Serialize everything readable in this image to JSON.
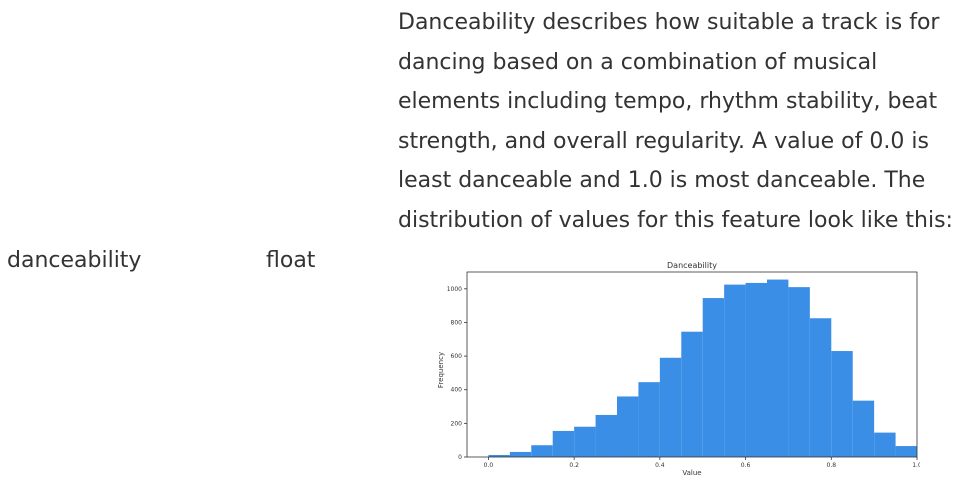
{
  "field": {
    "name": "danceability",
    "type": "float"
  },
  "description": "Danceability describes how suitable a track is for dancing based on a combination of musical elements including tempo, rhythm stability, beat strength, and overall regularity. A value of 0.0 is least danceable and 1.0 is most danceable. The distribution of values for this feature look like this:",
  "chart_data": {
    "type": "bar",
    "title": "Danceability",
    "xlabel": "Value",
    "ylabel": "Frequency",
    "xlim": [
      -0.05,
      1.0
    ],
    "ylim": [
      0,
      1100
    ],
    "xticks": [
      "0.0",
      "0.2",
      "0.4",
      "0.6",
      "0.8",
      "1.0"
    ],
    "yticks": [
      "0",
      "200",
      "400",
      "600",
      "800",
      "1000"
    ],
    "bin_width": 0.05,
    "bin_starts": [
      0.0,
      0.05,
      0.1,
      0.15,
      0.2,
      0.25,
      0.3,
      0.35,
      0.4,
      0.45,
      0.5,
      0.55,
      0.6,
      0.65,
      0.7,
      0.75,
      0.8,
      0.85,
      0.9,
      0.95
    ],
    "values": [
      12,
      30,
      70,
      155,
      180,
      250,
      360,
      445,
      590,
      745,
      945,
      1025,
      1035,
      1055,
      1010,
      825,
      630,
      335,
      145,
      65
    ],
    "color": "#3a8ee6",
    "grid": false
  }
}
